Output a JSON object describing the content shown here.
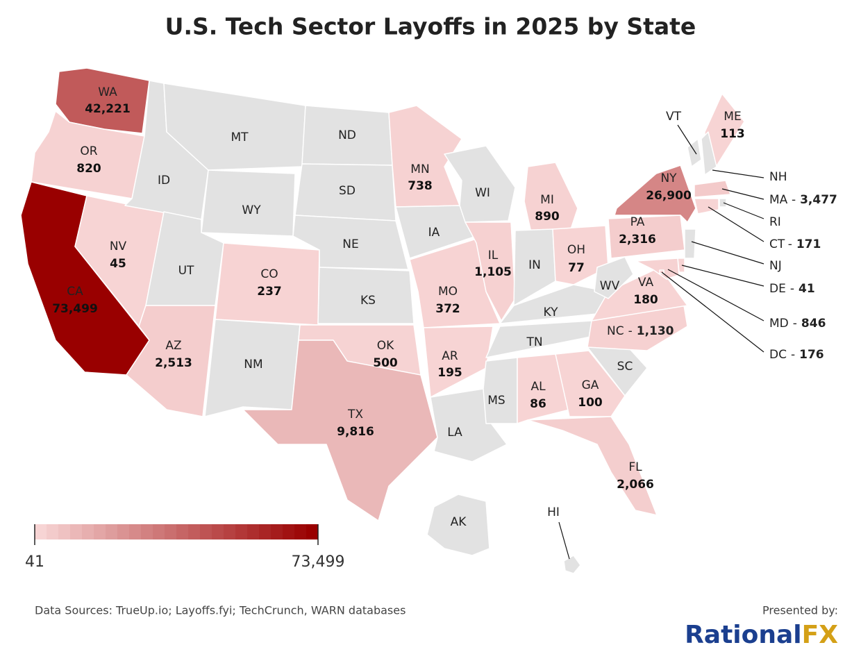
{
  "title": "U.S. Tech Sector Layoffs in 2025 by State",
  "chart_data": {
    "type": "choropleth",
    "categories": [
      "WA",
      "OR",
      "CA",
      "NV",
      "ID",
      "MT",
      "WY",
      "UT",
      "AZ",
      "CO",
      "NM",
      "ND",
      "SD",
      "NE",
      "KS",
      "OK",
      "TX",
      "MN",
      "IA",
      "MO",
      "AR",
      "LA",
      "WI",
      "IL",
      "MI",
      "IN",
      "OH",
      "KY",
      "TN",
      "MS",
      "AL",
      "GA",
      "FL",
      "SC",
      "NC",
      "VA",
      "WV",
      "PA",
      "NY",
      "ME",
      "VT",
      "NH",
      "MA",
      "RI",
      "CT",
      "NJ",
      "DE",
      "MD",
      "DC",
      "AK",
      "HI"
    ],
    "values": [
      42221,
      820,
      73499,
      45,
      null,
      null,
      null,
      null,
      2513,
      237,
      null,
      null,
      null,
      null,
      null,
      500,
      9816,
      738,
      null,
      372,
      195,
      null,
      null,
      1105,
      890,
      null,
      77,
      null,
      null,
      null,
      86,
      100,
      2066,
      null,
      1130,
      180,
      null,
      2316,
      26900,
      113,
      null,
      null,
      3477,
      null,
      171,
      null,
      41,
      846,
      176,
      null,
      null
    ],
    "value_labels": [
      "42,221",
      "820",
      "73,499",
      "45",
      null,
      null,
      null,
      null,
      "2,513",
      "237",
      null,
      null,
      null,
      null,
      null,
      "500",
      "9,816",
      "738",
      null,
      "372",
      "195",
      null,
      null,
      "1,105",
      "890",
      null,
      "77",
      null,
      null,
      null,
      "86",
      "100",
      "2,066",
      null,
      "1,130",
      "180",
      null,
      "2,316",
      "26,900",
      "113",
      null,
      null,
      "3,477",
      null,
      "171",
      null,
      "41",
      "846",
      "176",
      null,
      null
    ],
    "label_separator": "-",
    "clim": [
      41,
      73499
    ],
    "cticks": [
      41,
      {
        "value": 73499,
        "label": "73,499"
      }
    ],
    "color_range": [
      "#f7d4d4",
      "#990000"
    ],
    "no_data_color": "#e2e2e2"
  },
  "source": "Data Sources: TrueUp.io; Layoffs.fyi; TechCrunch, WARN databases",
  "presented_by": "Presented by:",
  "brand": [
    "Rational",
    "FX"
  ]
}
